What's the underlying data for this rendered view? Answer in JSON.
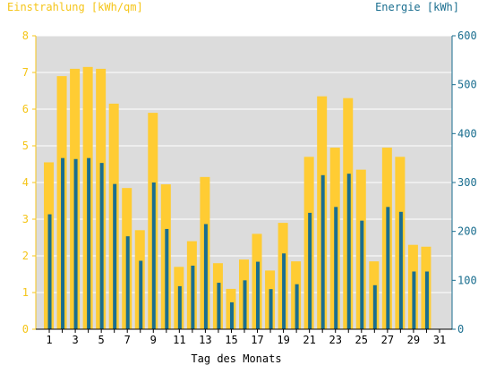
{
  "chart_data": {
    "type": "bar",
    "left_axis": {
      "title": "Einstrahlung [kWh/qm]",
      "ylim": [
        0,
        8
      ],
      "ticks": [
        "0",
        "1",
        "2",
        "3",
        "4",
        "5",
        "6",
        "7",
        "8"
      ],
      "color": "#f5c518"
    },
    "right_axis": {
      "title": "Energie [kWh]",
      "ylim": [
        0,
        600
      ],
      "ticks": [
        "0",
        "100",
        "200",
        "300",
        "400",
        "500",
        "600"
      ],
      "color": "#1a6e8f"
    },
    "xlabel": "Tag des Monats",
    "x_tick_labels": [
      "1",
      "3",
      "5",
      "7",
      "9",
      "11",
      "13",
      "15",
      "17",
      "19",
      "21",
      "23",
      "25",
      "27",
      "29",
      "31"
    ],
    "days": [
      1,
      2,
      3,
      4,
      5,
      6,
      7,
      8,
      9,
      10,
      11,
      12,
      13,
      14,
      15,
      16,
      17,
      18,
      19,
      20,
      21,
      22,
      23,
      24,
      25,
      26,
      27,
      28,
      29,
      30
    ],
    "grid": true,
    "plot_background": "#dcdcdc",
    "series": [
      {
        "axis": "left",
        "color": "#ffcc33",
        "values": [
          4.55,
          6.9,
          7.1,
          7.15,
          7.1,
          6.15,
          3.85,
          2.7,
          5.9,
          3.95,
          1.7,
          2.4,
          4.15,
          1.8,
          1.1,
          1.9,
          2.6,
          1.6,
          2.9,
          1.85,
          4.7,
          6.35,
          4.95,
          6.3,
          4.35,
          1.85,
          4.95,
          4.7,
          2.3,
          2.25
        ]
      },
      {
        "axis": "right",
        "color": "#1a6e8f",
        "values": [
          235,
          350,
          348,
          350,
          340,
          297,
          190,
          140,
          300,
          205,
          88,
          130,
          215,
          95,
          55,
          100,
          138,
          82,
          155,
          92,
          238,
          315,
          250,
          318,
          222,
          90,
          250,
          240,
          118,
          118
        ]
      }
    ]
  }
}
